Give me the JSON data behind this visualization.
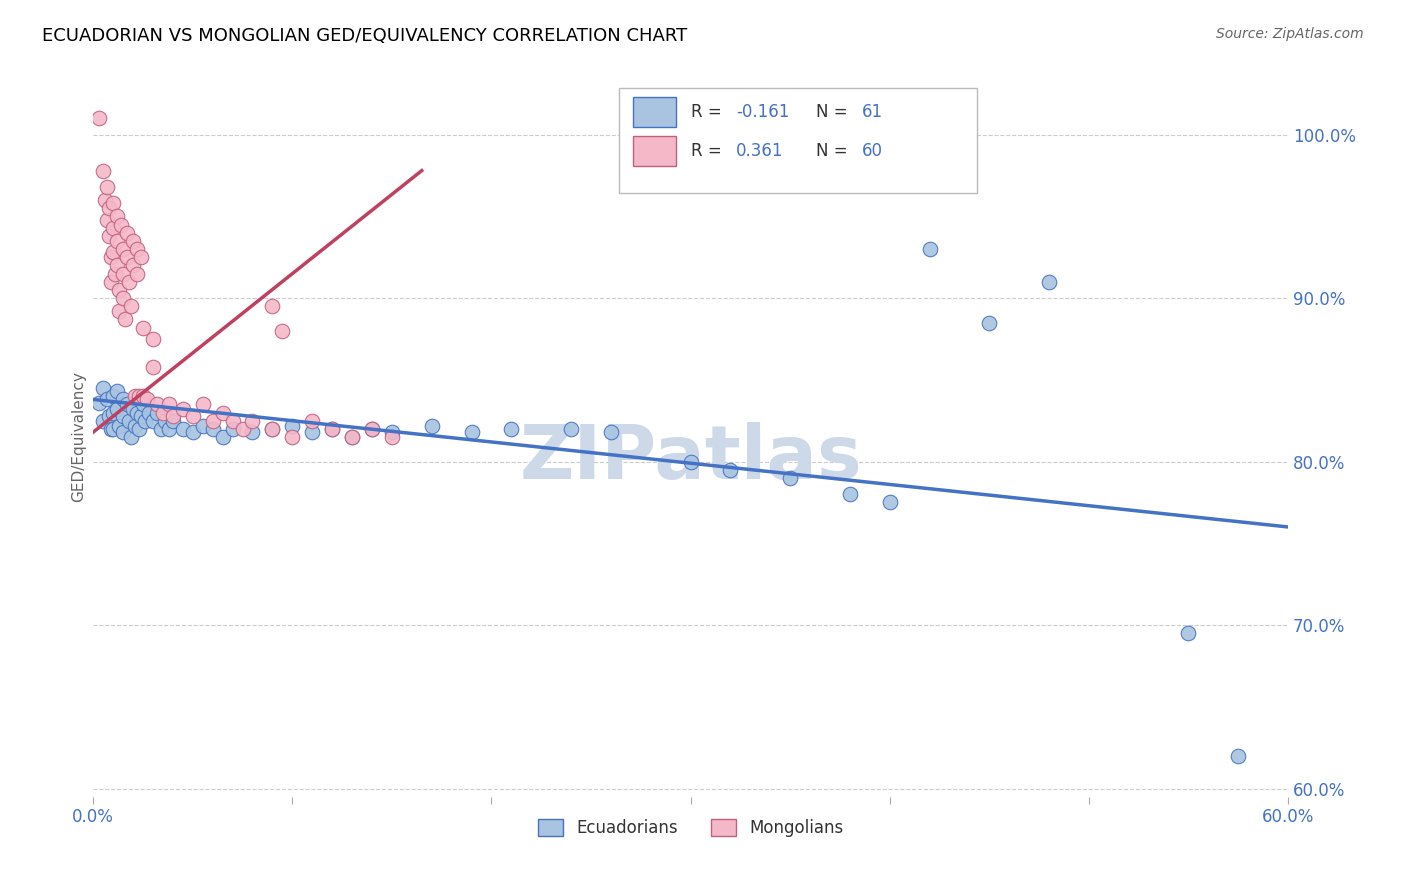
{
  "title": "ECUADORIAN VS MONGOLIAN GED/EQUIVALENCY CORRELATION CHART",
  "source": "Source: ZipAtlas.com",
  "ylabel": "GED/Equivalency",
  "ytick_values": [
    1.0,
    0.9,
    0.8,
    0.7,
    0.6
  ],
  "xlim": [
    0.0,
    0.6
  ],
  "ylim": [
    0.595,
    1.035
  ],
  "watermark": "ZIPatlas",
  "blue_scatter": [
    [
      0.003,
      0.836
    ],
    [
      0.005,
      0.845
    ],
    [
      0.005,
      0.825
    ],
    [
      0.007,
      0.838
    ],
    [
      0.008,
      0.828
    ],
    [
      0.009,
      0.82
    ],
    [
      0.01,
      0.84
    ],
    [
      0.01,
      0.83
    ],
    [
      0.01,
      0.82
    ],
    [
      0.012,
      0.843
    ],
    [
      0.012,
      0.832
    ],
    [
      0.013,
      0.822
    ],
    [
      0.015,
      0.838
    ],
    [
      0.015,
      0.828
    ],
    [
      0.015,
      0.818
    ],
    [
      0.017,
      0.835
    ],
    [
      0.018,
      0.825
    ],
    [
      0.019,
      0.815
    ],
    [
      0.02,
      0.832
    ],
    [
      0.021,
      0.822
    ],
    [
      0.022,
      0.83
    ],
    [
      0.023,
      0.82
    ],
    [
      0.024,
      0.828
    ],
    [
      0.025,
      0.835
    ],
    [
      0.026,
      0.825
    ],
    [
      0.028,
      0.83
    ],
    [
      0.03,
      0.825
    ],
    [
      0.032,
      0.83
    ],
    [
      0.034,
      0.82
    ],
    [
      0.036,
      0.825
    ],
    [
      0.038,
      0.82
    ],
    [
      0.04,
      0.825
    ],
    [
      0.045,
      0.82
    ],
    [
      0.05,
      0.818
    ],
    [
      0.055,
      0.822
    ],
    [
      0.06,
      0.82
    ],
    [
      0.065,
      0.815
    ],
    [
      0.07,
      0.82
    ],
    [
      0.08,
      0.818
    ],
    [
      0.09,
      0.82
    ],
    [
      0.1,
      0.822
    ],
    [
      0.11,
      0.818
    ],
    [
      0.12,
      0.82
    ],
    [
      0.13,
      0.815
    ],
    [
      0.14,
      0.82
    ],
    [
      0.15,
      0.818
    ],
    [
      0.17,
      0.822
    ],
    [
      0.19,
      0.818
    ],
    [
      0.21,
      0.82
    ],
    [
      0.24,
      0.82
    ],
    [
      0.26,
      0.818
    ],
    [
      0.3,
      0.8
    ],
    [
      0.32,
      0.795
    ],
    [
      0.35,
      0.79
    ],
    [
      0.38,
      0.78
    ],
    [
      0.4,
      0.775
    ],
    [
      0.42,
      0.93
    ],
    [
      0.45,
      0.885
    ],
    [
      0.48,
      0.91
    ],
    [
      0.55,
      0.695
    ],
    [
      0.575,
      0.62
    ]
  ],
  "pink_scatter": [
    [
      0.003,
      1.01
    ],
    [
      0.005,
      0.978
    ],
    [
      0.006,
      0.96
    ],
    [
      0.007,
      0.968
    ],
    [
      0.007,
      0.948
    ],
    [
      0.008,
      0.955
    ],
    [
      0.008,
      0.938
    ],
    [
      0.009,
      0.925
    ],
    [
      0.009,
      0.91
    ],
    [
      0.01,
      0.958
    ],
    [
      0.01,
      0.943
    ],
    [
      0.01,
      0.928
    ],
    [
      0.011,
      0.915
    ],
    [
      0.012,
      0.95
    ],
    [
      0.012,
      0.935
    ],
    [
      0.012,
      0.92
    ],
    [
      0.013,
      0.905
    ],
    [
      0.013,
      0.892
    ],
    [
      0.014,
      0.945
    ],
    [
      0.015,
      0.93
    ],
    [
      0.015,
      0.915
    ],
    [
      0.015,
      0.9
    ],
    [
      0.016,
      0.887
    ],
    [
      0.017,
      0.94
    ],
    [
      0.017,
      0.925
    ],
    [
      0.018,
      0.91
    ],
    [
      0.019,
      0.895
    ],
    [
      0.02,
      0.935
    ],
    [
      0.02,
      0.92
    ],
    [
      0.021,
      0.84
    ],
    [
      0.022,
      0.93
    ],
    [
      0.022,
      0.915
    ],
    [
      0.023,
      0.84
    ],
    [
      0.024,
      0.925
    ],
    [
      0.025,
      0.84
    ],
    [
      0.027,
      0.838
    ],
    [
      0.03,
      0.858
    ],
    [
      0.032,
      0.835
    ],
    [
      0.035,
      0.83
    ],
    [
      0.038,
      0.835
    ],
    [
      0.04,
      0.828
    ],
    [
      0.045,
      0.832
    ],
    [
      0.05,
      0.828
    ],
    [
      0.055,
      0.835
    ],
    [
      0.06,
      0.825
    ],
    [
      0.065,
      0.83
    ],
    [
      0.07,
      0.825
    ],
    [
      0.075,
      0.82
    ],
    [
      0.08,
      0.825
    ],
    [
      0.09,
      0.82
    ],
    [
      0.1,
      0.815
    ],
    [
      0.11,
      0.825
    ],
    [
      0.12,
      0.82
    ],
    [
      0.13,
      0.815
    ],
    [
      0.14,
      0.82
    ],
    [
      0.15,
      0.815
    ],
    [
      0.09,
      0.895
    ],
    [
      0.095,
      0.88
    ],
    [
      0.025,
      0.882
    ],
    [
      0.03,
      0.875
    ]
  ],
  "blue_line": [
    [
      0.0,
      0.838
    ],
    [
      0.6,
      0.76
    ]
  ],
  "pink_line": [
    [
      0.0,
      0.818
    ],
    [
      0.165,
      0.978
    ]
  ],
  "title_fontsize": 13,
  "source_fontsize": 10,
  "label_color": "#4472c4",
  "scatter_blue_color": "#a8c4e0",
  "scatter_pink_color": "#f4b8c8",
  "line_blue_color": "#4472c4",
  "line_pink_color": "#c0404080",
  "grid_color": "#cccccc",
  "watermark_color": "#cdd8e8",
  "legend_blue_r": "R = -0.161",
  "legend_blue_n": "N =  61",
  "legend_pink_r": "R =  0.361",
  "legend_pink_n": "N =  60"
}
